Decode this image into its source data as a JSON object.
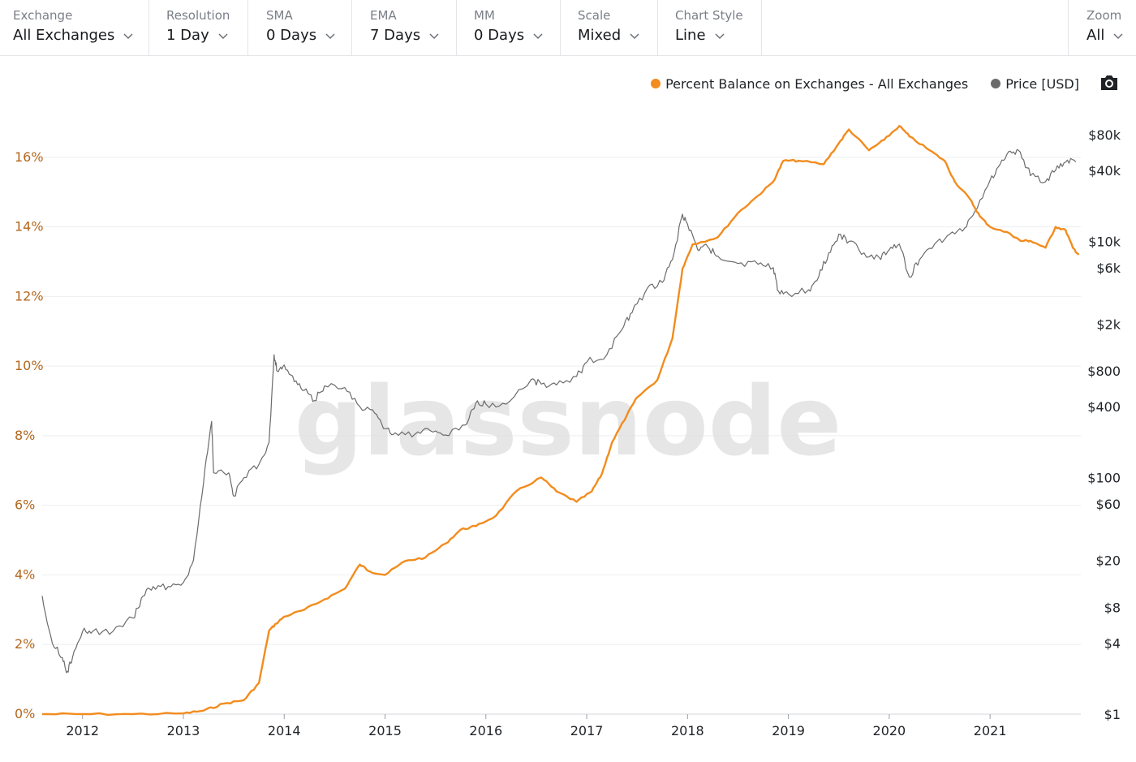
{
  "toolbar": {
    "exchange": {
      "label": "Exchange",
      "value": "All Exchanges"
    },
    "resolution": {
      "label": "Resolution",
      "value": "1 Day"
    },
    "sma": {
      "label": "SMA",
      "value": "0 Days"
    },
    "ema": {
      "label": "EMA",
      "value": "7 Days"
    },
    "mm": {
      "label": "MM",
      "value": "0 Days"
    },
    "scale": {
      "label": "Scale",
      "value": "Mixed"
    },
    "chart_style": {
      "label": "Chart Style",
      "value": "Line"
    },
    "zoom": {
      "label": "Zoom",
      "value": "All"
    }
  },
  "legend": {
    "series1": "Percent Balance on Exchanges - All Exchanges",
    "series2": "Price [USD]"
  },
  "colors": {
    "balance": "#f28c1e",
    "price": "#6b6b6b",
    "left_axis_text": "#b3671f",
    "grid": "#eceef0",
    "watermark": "#dcdcdc"
  },
  "icons": {
    "chevron": "chevron-down-icon",
    "camera": "camera-icon"
  },
  "watermark": "glassnode",
  "chart_data": {
    "type": "line",
    "x_ticks": [
      "2012",
      "2013",
      "2014",
      "2015",
      "2016",
      "2017",
      "2018",
      "2019",
      "2020",
      "2021"
    ],
    "y_left": {
      "ticks": [
        "0%",
        "2%",
        "4%",
        "6%",
        "8%",
        "10%",
        "12%",
        "14%",
        "16%"
      ],
      "range": [
        0,
        18
      ]
    },
    "y_right": {
      "ticks": [
        "$1",
        "$4",
        "$8",
        "$20",
        "$60",
        "$100",
        "$400",
        "$800",
        "$2k",
        "$6k",
        "$10k",
        "$40k",
        "$80k"
      ],
      "scale": "log",
      "range": [
        1,
        200000
      ]
    },
    "grid": true,
    "legend_position": "top-right",
    "series": [
      {
        "name": "Percent Balance on Exchanges - All Exchanges",
        "axis": "left",
        "points": [
          [
            2011.6,
            0.0
          ],
          [
            2012.0,
            0.0
          ],
          [
            2012.5,
            0.0
          ],
          [
            2013.0,
            0.02
          ],
          [
            2013.2,
            0.1
          ],
          [
            2013.4,
            0.3
          ],
          [
            2013.6,
            0.4
          ],
          [
            2013.75,
            0.9
          ],
          [
            2013.85,
            2.4
          ],
          [
            2013.92,
            2.6
          ],
          [
            2014.0,
            2.8
          ],
          [
            2014.2,
            3.0
          ],
          [
            2014.4,
            3.3
          ],
          [
            2014.6,
            3.6
          ],
          [
            2014.75,
            4.3
          ],
          [
            2014.85,
            4.1
          ],
          [
            2015.0,
            4.0
          ],
          [
            2015.2,
            4.4
          ],
          [
            2015.4,
            4.5
          ],
          [
            2015.6,
            4.9
          ],
          [
            2015.75,
            5.3
          ],
          [
            2015.9,
            5.4
          ],
          [
            2016.1,
            5.7
          ],
          [
            2016.3,
            6.4
          ],
          [
            2016.55,
            6.8
          ],
          [
            2016.7,
            6.4
          ],
          [
            2016.9,
            6.1
          ],
          [
            2017.05,
            6.4
          ],
          [
            2017.15,
            6.9
          ],
          [
            2017.25,
            7.8
          ],
          [
            2017.4,
            8.6
          ],
          [
            2017.5,
            9.1
          ],
          [
            2017.7,
            9.6
          ],
          [
            2017.85,
            10.8
          ],
          [
            2017.95,
            12.8
          ],
          [
            2018.05,
            13.5
          ],
          [
            2018.3,
            13.7
          ],
          [
            2018.5,
            14.4
          ],
          [
            2018.7,
            14.9
          ],
          [
            2018.85,
            15.3
          ],
          [
            2018.95,
            15.9
          ],
          [
            2019.1,
            15.9
          ],
          [
            2019.35,
            15.8
          ],
          [
            2019.5,
            16.4
          ],
          [
            2019.6,
            16.8
          ],
          [
            2019.8,
            16.2
          ],
          [
            2019.95,
            16.5
          ],
          [
            2020.1,
            16.9
          ],
          [
            2020.2,
            16.6
          ],
          [
            2020.4,
            16.2
          ],
          [
            2020.55,
            15.9
          ],
          [
            2020.65,
            15.3
          ],
          [
            2020.8,
            14.8
          ],
          [
            2020.9,
            14.3
          ],
          [
            2021.0,
            14.0
          ],
          [
            2021.2,
            13.8
          ],
          [
            2021.3,
            13.6
          ],
          [
            2021.4,
            13.6
          ],
          [
            2021.55,
            13.4
          ],
          [
            2021.65,
            14.0
          ],
          [
            2021.75,
            13.9
          ],
          [
            2021.82,
            13.4
          ],
          [
            2021.88,
            13.2
          ]
        ]
      },
      {
        "name": "Price [USD]",
        "axis": "right",
        "points": [
          [
            2011.6,
            10
          ],
          [
            2011.7,
            4
          ],
          [
            2011.8,
            3
          ],
          [
            2011.85,
            2.3
          ],
          [
            2011.9,
            3
          ],
          [
            2012.0,
            5
          ],
          [
            2012.1,
            5
          ],
          [
            2012.3,
            5
          ],
          [
            2012.5,
            6.5
          ],
          [
            2012.6,
            10
          ],
          [
            2012.7,
            12
          ],
          [
            2012.85,
            12
          ],
          [
            2013.0,
            13
          ],
          [
            2013.1,
            20
          ],
          [
            2013.2,
            90
          ],
          [
            2013.28,
            300
          ],
          [
            2013.3,
            110
          ],
          [
            2013.45,
            110
          ],
          [
            2013.5,
            70
          ],
          [
            2013.6,
            100
          ],
          [
            2013.75,
            130
          ],
          [
            2013.85,
            200
          ],
          [
            2013.9,
            1100
          ],
          [
            2013.93,
            800
          ],
          [
            2014.0,
            900
          ],
          [
            2014.1,
            650
          ],
          [
            2014.2,
            550
          ],
          [
            2014.3,
            450
          ],
          [
            2014.4,
            600
          ],
          [
            2014.6,
            580
          ],
          [
            2014.75,
            400
          ],
          [
            2014.9,
            350
          ],
          [
            2015.0,
            260
          ],
          [
            2015.1,
            240
          ],
          [
            2015.3,
            235
          ],
          [
            2015.45,
            250
          ],
          [
            2015.6,
            230
          ],
          [
            2015.8,
            280
          ],
          [
            2015.9,
            430
          ],
          [
            2016.0,
            420
          ],
          [
            2016.2,
            420
          ],
          [
            2016.45,
            680
          ],
          [
            2016.55,
            620
          ],
          [
            2016.7,
            610
          ],
          [
            2016.9,
            720
          ],
          [
            2017.0,
            950
          ],
          [
            2017.2,
            1100
          ],
          [
            2017.35,
            1800
          ],
          [
            2017.45,
            2500
          ],
          [
            2017.6,
            4000
          ],
          [
            2017.75,
            4500
          ],
          [
            2017.85,
            7000
          ],
          [
            2017.95,
            17000
          ],
          [
            2018.0,
            14000
          ],
          [
            2018.1,
            8500
          ],
          [
            2018.2,
            9000
          ],
          [
            2018.3,
            7500
          ],
          [
            2018.5,
            6500
          ],
          [
            2018.7,
            6400
          ],
          [
            2018.85,
            6000
          ],
          [
            2018.9,
            3800
          ],
          [
            2019.0,
            3600
          ],
          [
            2019.2,
            3900
          ],
          [
            2019.3,
            5000
          ],
          [
            2019.4,
            8000
          ],
          [
            2019.5,
            11500
          ],
          [
            2019.6,
            10000
          ],
          [
            2019.75,
            8000
          ],
          [
            2019.9,
            7300
          ],
          [
            2020.0,
            8500
          ],
          [
            2020.1,
            9500
          ],
          [
            2020.2,
            5000
          ],
          [
            2020.3,
            7000
          ],
          [
            2020.45,
            9500
          ],
          [
            2020.6,
            11500
          ],
          [
            2020.75,
            13000
          ],
          [
            2020.85,
            18000
          ],
          [
            2021.0,
            33000
          ],
          [
            2021.1,
            45000
          ],
          [
            2021.2,
            58000
          ],
          [
            2021.3,
            57000
          ],
          [
            2021.4,
            36000
          ],
          [
            2021.55,
            32000
          ],
          [
            2021.65,
            40000
          ],
          [
            2021.75,
            47000
          ],
          [
            2021.85,
            47000
          ]
        ]
      }
    ]
  }
}
